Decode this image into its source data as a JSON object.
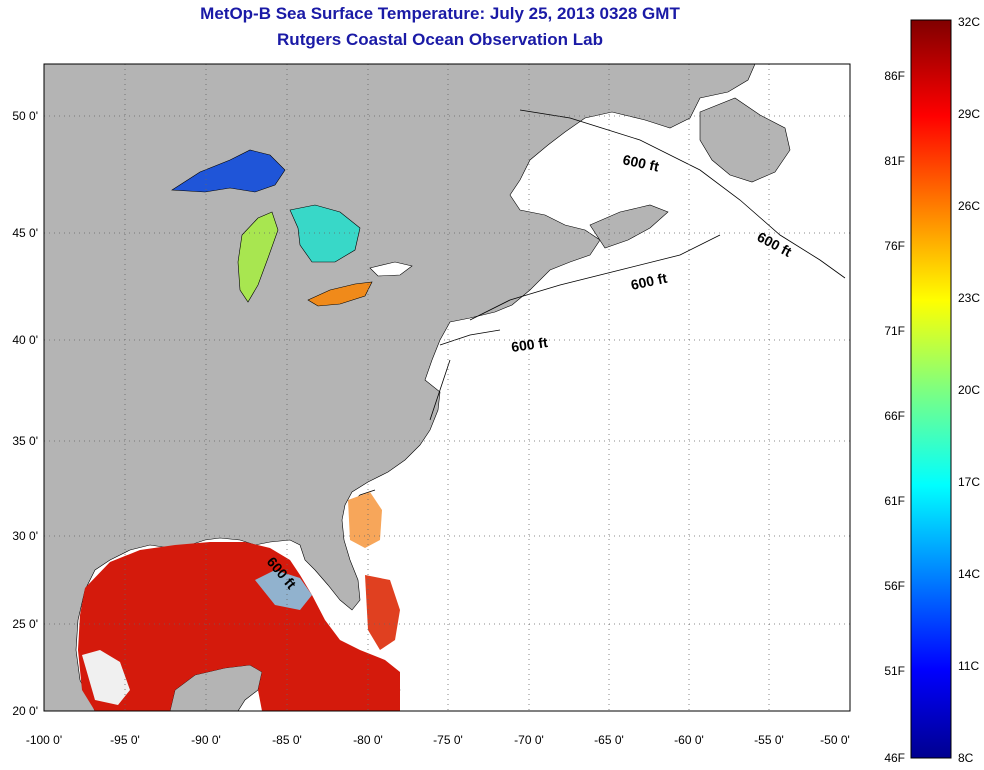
{
  "title_line1": "MetOp-B Sea Surface Temperature:  July 25, 2013 0328 GMT",
  "title_line2": "Rutgers Coastal Ocean Observation Lab",
  "map": {
    "lon_range": [
      -100,
      -50
    ],
    "lat_range": [
      20,
      52
    ],
    "grid": true,
    "x_ticks": [
      "-100 0'",
      "-95 0'",
      "-90 0'",
      "-85 0'",
      "-80 0'",
      "-75 0'",
      "-70 0'",
      "-65 0'",
      "-60 0'",
      "-55 0'",
      "-50 0'"
    ],
    "y_ticks": [
      "20 0'",
      "25 0'",
      "30 0'",
      "35 0'",
      "40 0'",
      "45 0'",
      "50 0'"
    ],
    "land_color": "#b4b4b4",
    "ocean_color": "#ffffff",
    "contour_labels": [
      "600 ft",
      "600 ft",
      "600 ft",
      "600 ft",
      "600 ft"
    ]
  },
  "colorbar": {
    "celsius": [
      "32C",
      "29C",
      "26C",
      "23C",
      "20C",
      "17C",
      "14C",
      "11C",
      "8C"
    ],
    "fahrenheit": [
      "86F",
      "81F",
      "76F",
      "71F",
      "66F",
      "61F",
      "56F",
      "51F",
      "46F"
    ],
    "colormap": "jet"
  }
}
